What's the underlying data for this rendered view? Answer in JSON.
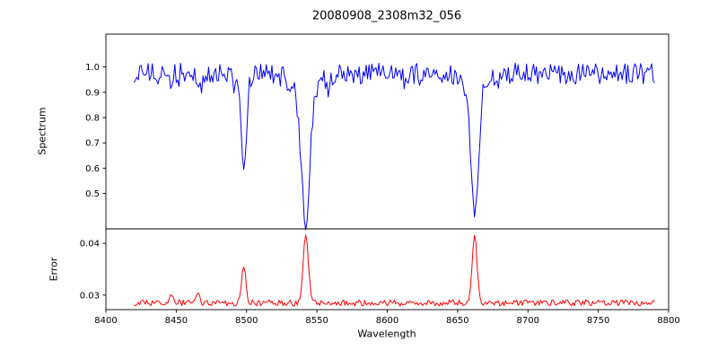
{
  "title": "20080908_2308m32_056",
  "xlabel": "Wavelength",
  "x_axis": {
    "lim": [
      8400,
      8800
    ],
    "ticks": [
      {
        "value": 8400,
        "label": "8400"
      },
      {
        "value": 8450,
        "label": "8450"
      },
      {
        "value": 8500,
        "label": "8500"
      },
      {
        "value": 8550,
        "label": "8550"
      },
      {
        "value": 8600,
        "label": "8600"
      },
      {
        "value": 8650,
        "label": "8650"
      },
      {
        "value": 8700,
        "label": "8700"
      },
      {
        "value": 8750,
        "label": "8750"
      },
      {
        "value": 8800,
        "label": "8800"
      }
    ]
  },
  "chart_data": [
    {
      "type": "line",
      "name": "spectrum",
      "color": "#0000ff",
      "ylabel": "Spectrum",
      "ylim": [
        0.36,
        1.13
      ],
      "yticks": [
        {
          "value": 0.5,
          "label": "0.5"
        },
        {
          "value": 0.6,
          "label": "0.6"
        },
        {
          "value": 0.7,
          "label": "0.7"
        },
        {
          "value": 0.8,
          "label": "0.8"
        },
        {
          "value": 0.9,
          "label": "0.9"
        },
        {
          "value": 1.0,
          "label": "1.0"
        }
      ],
      "x_start": 8420,
      "x_end": 8790,
      "x_step": 1,
      "baseline": 0.975,
      "noise_amplitude": 0.085,
      "dip_probability": 0.05,
      "dip_max": 0.05,
      "features": [
        {
          "center": 8446.0,
          "depth": 0.055,
          "sigma": 1.3
        },
        {
          "center": 8468.0,
          "depth": 0.06,
          "sigma": 1.3
        },
        {
          "center": 8498.0,
          "depth": 0.36,
          "sigma": 1.7,
          "wing_depth": 0.035,
          "wing_sigma": 5
        },
        {
          "center": 8542.1,
          "depth": 0.5,
          "sigma": 2.8,
          "wing_depth": 0.08,
          "wing_sigma": 9
        },
        {
          "center": 8662.1,
          "depth": 0.49,
          "sigma": 2.5,
          "wing_depth": 0.07,
          "wing_sigma": 8
        }
      ],
      "seed": 20080908
    },
    {
      "type": "line",
      "name": "error",
      "color": "#ff0000",
      "ylabel": "Error",
      "ylim": [
        0.0272,
        0.0428
      ],
      "yticks": [
        {
          "value": 0.03,
          "label": "0.03"
        },
        {
          "value": 0.04,
          "label": "0.04"
        }
      ],
      "x_start": 8420,
      "x_end": 8790,
      "x_step": 1,
      "baseline": 0.0285,
      "noise_amplitude": 0.0012,
      "dip_probability": 0.0,
      "dip_max": 0.0,
      "features": [
        {
          "center": 8447.0,
          "depth": -0.0016,
          "sigma": 1.6
        },
        {
          "center": 8465.0,
          "depth": -0.0018,
          "sigma": 1.6
        },
        {
          "center": 8498.0,
          "depth": -0.0072,
          "sigma": 1.5
        },
        {
          "center": 8542.1,
          "depth": -0.0133,
          "sigma": 1.8
        },
        {
          "center": 8662.1,
          "depth": -0.0132,
          "sigma": 1.7
        }
      ],
      "seed": 2308
    }
  ]
}
